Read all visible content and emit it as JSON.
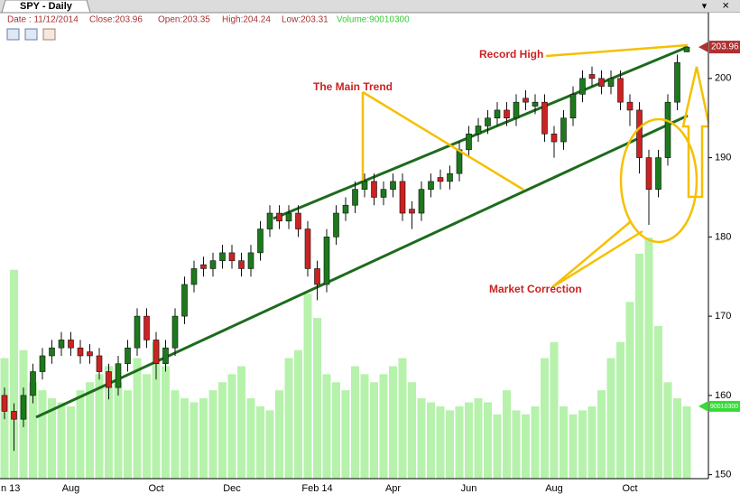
{
  "chart_data": {
    "type": "candlestick",
    "title": "SPY  -  Daily",
    "info": {
      "date": "Date : 11/12/2014",
      "close": "Close:203.96",
      "open": "Open:203.35",
      "high": "High:204.24",
      "low": "Low:203.31",
      "volume": "Volume:90010300"
    },
    "annotations": [
      "Record High",
      "The Main Trend",
      "Market Correction"
    ],
    "categories": [
      "n 13",
      null,
      null,
      null,
      null,
      null,
      null,
      "Aug",
      null,
      null,
      null,
      null,
      null,
      null,
      null,
      null,
      "Oct",
      null,
      null,
      null,
      null,
      null,
      null,
      null,
      "Dec",
      null,
      null,
      null,
      null,
      null,
      null,
      null,
      null,
      "Feb 14",
      null,
      null,
      null,
      null,
      null,
      null,
      null,
      "Apr",
      null,
      null,
      null,
      null,
      null,
      null,
      null,
      "Jun",
      null,
      null,
      null,
      null,
      null,
      null,
      null,
      null,
      "Aug",
      null,
      null,
      null,
      null,
      null,
      null,
      null,
      "Oct",
      null,
      null,
      null,
      null,
      null,
      null
    ],
    "open": [
      160,
      158,
      157,
      160,
      163,
      165,
      166,
      167,
      166,
      165.5,
      165,
      163,
      161,
      164,
      166,
      170,
      167,
      164,
      166,
      170,
      174,
      176.5,
      176,
      177,
      178,
      177,
      176,
      178,
      181,
      183,
      182,
      183,
      181,
      176,
      174,
      180,
      183,
      184,
      186,
      187,
      185,
      186,
      187,
      183.5,
      183,
      186,
      187.5,
      187,
      188,
      191,
      193,
      194,
      195,
      196,
      195,
      197.5,
      196.5,
      197,
      193,
      192,
      195,
      198,
      200.5,
      200,
      199,
      200,
      197,
      196,
      190,
      186,
      190,
      197,
      203.35
    ],
    "high": [
      161,
      159,
      161,
      164,
      166,
      167,
      168,
      168,
      167,
      166.5,
      166,
      164,
      165,
      167,
      171,
      171,
      168,
      167,
      171,
      175,
      177,
      177.5,
      178,
      179,
      179,
      178,
      179,
      182,
      184,
      184,
      184,
      184,
      182,
      177,
      181,
      184,
      185,
      187,
      188,
      188,
      187,
      188,
      188,
      184.5,
      187,
      188,
      188.5,
      189,
      192,
      194,
      195,
      196,
      197,
      197,
      198,
      198.5,
      198,
      198,
      194,
      196,
      199,
      201,
      201.5,
      201,
      201,
      201,
      198,
      197,
      191,
      191,
      198,
      203,
      204.24
    ],
    "low": [
      157,
      153,
      156,
      159,
      162,
      164,
      165,
      165,
      164,
      164,
      162,
      159.5,
      160,
      163,
      165,
      166,
      162,
      163,
      165,
      169,
      173,
      175,
      175,
      176,
      176,
      175,
      175,
      177,
      180,
      181,
      181,
      180,
      175,
      172,
      173,
      179,
      182,
      183,
      185,
      184,
      184,
      185,
      182,
      181,
      182,
      185,
      186,
      186,
      187,
      190,
      192,
      193,
      194,
      194,
      194,
      196,
      195.5,
      192,
      190,
      191,
      194,
      197,
      199,
      198,
      198,
      196,
      194,
      188,
      181.5,
      185,
      189,
      196,
      203.31
    ],
    "close": [
      158,
      157,
      160,
      163,
      165,
      166,
      167,
      166,
      165,
      165,
      163,
      161,
      164,
      166,
      170,
      167,
      164,
      166,
      170,
      174,
      176,
      176,
      177,
      178,
      177,
      176,
      178,
      181,
      183,
      182,
      183,
      181,
      176,
      174,
      180,
      183,
      184,
      186,
      187,
      185,
      186,
      187,
      183,
      183,
      186,
      187,
      187,
      188,
      191,
      193,
      194,
      195,
      196,
      195,
      197,
      197,
      197,
      193,
      192,
      195,
      198,
      200,
      200,
      199,
      200,
      197,
      196,
      190,
      186,
      190,
      197,
      202,
      203.96
    ],
    "volume": [
      150000000,
      260000000,
      160000000,
      120000000,
      110000000,
      100000000,
      95000000,
      90000000,
      110000000,
      120000000,
      130000000,
      140000000,
      120000000,
      110000000,
      150000000,
      130000000,
      170000000,
      140000000,
      110000000,
      100000000,
      95000000,
      100000000,
      110000000,
      120000000,
      130000000,
      140000000,
      100000000,
      90000000,
      85000000,
      110000000,
      150000000,
      160000000,
      230000000,
      200000000,
      130000000,
      120000000,
      110000000,
      140000000,
      130000000,
      120000000,
      130000000,
      140000000,
      150000000,
      120000000,
      100000000,
      95000000,
      90000000,
      85000000,
      90000000,
      95000000,
      100000000,
      95000000,
      80000000,
      110000000,
      85000000,
      80000000,
      90000000,
      150000000,
      170000000,
      90000000,
      80000000,
      85000000,
      90000000,
      110000000,
      150000000,
      170000000,
      220000000,
      280000000,
      300000000,
      190000000,
      120000000,
      100000000,
      90010300
    ],
    "ylim": [
      149.5,
      208.3
    ],
    "yticks": [
      150,
      160,
      170,
      180,
      190,
      200
    ],
    "y2lim": [
      0,
      580000000
    ],
    "colors": {
      "up": "#1c7a1c",
      "down": "#cc2222",
      "volume": "#b6f2ac"
    }
  }
}
